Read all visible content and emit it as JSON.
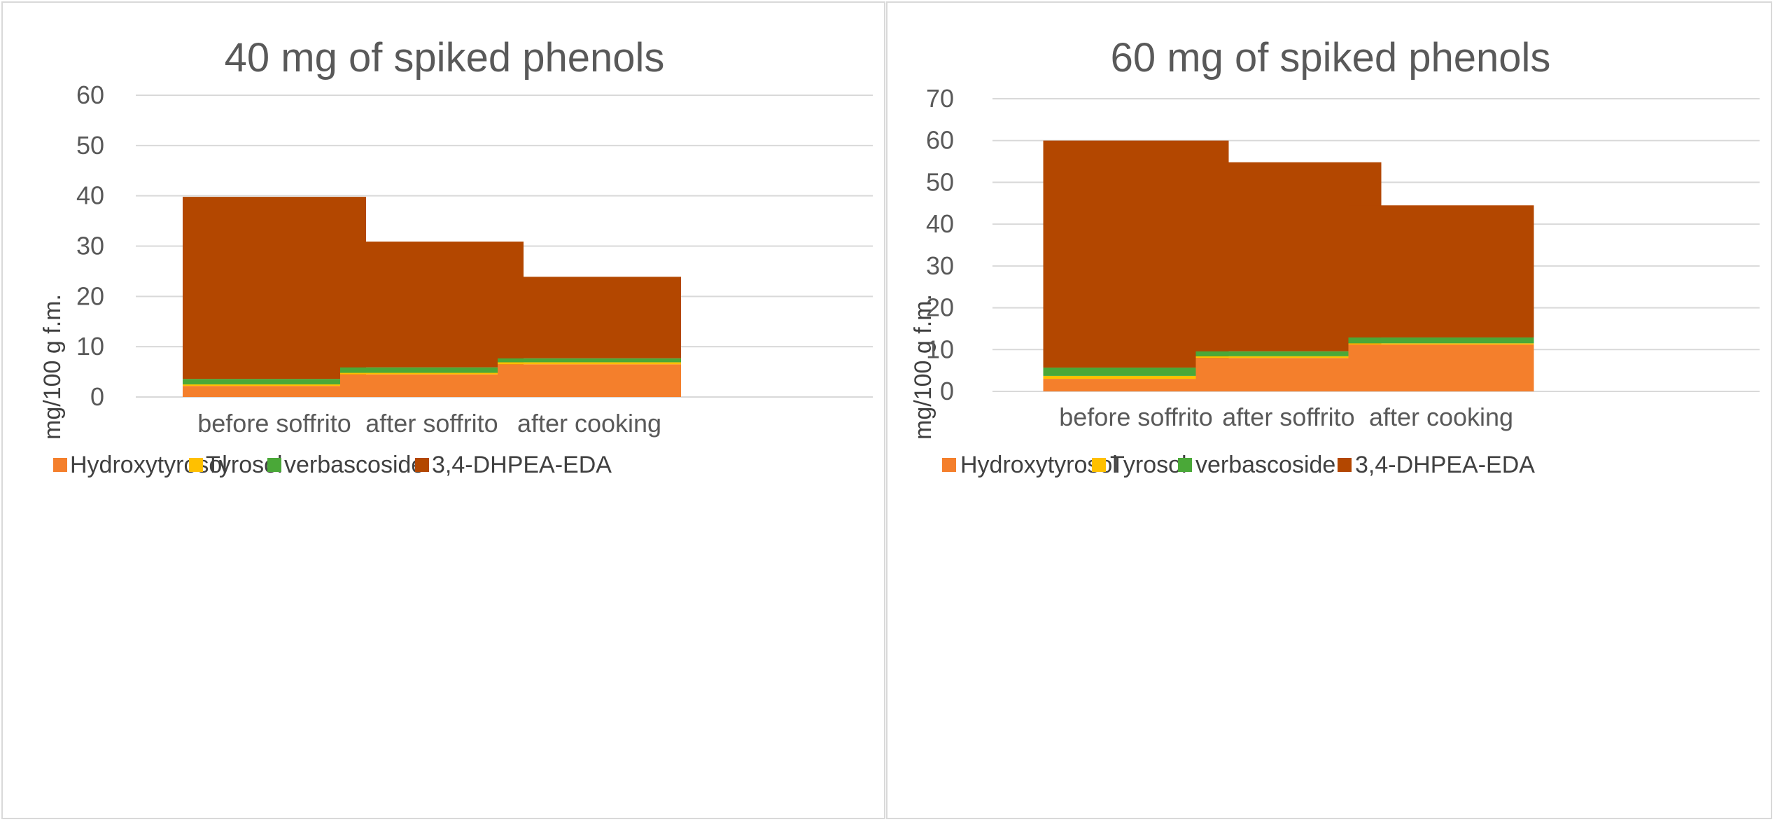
{
  "colors": {
    "Hydroxytyrosol": "#f47f2c",
    "Tyrosol": "#ffc000",
    "verbascoside": "#4aa838",
    "3,4-DHPEA-EDA": "#b34700"
  },
  "chart_data": [
    {
      "type": "bar",
      "stacked": true,
      "title": "40 mg of spiked phenols",
      "xlabel": "",
      "ylabel": "mg/100 g f.m.",
      "ylim": [
        0,
        60
      ],
      "yticks": [
        0,
        10,
        20,
        30,
        40,
        50,
        60
      ],
      "categories": [
        "before soffrito",
        "after soffrito",
        "after cooking"
      ],
      "series": [
        {
          "name": "Hydroxytyrosol",
          "values": [
            2.2,
            4.5,
            6.5
          ]
        },
        {
          "name": "Tyrosol",
          "values": [
            0.3,
            0.3,
            0.4
          ]
        },
        {
          "name": "verbascoside",
          "values": [
            1.1,
            1.1,
            0.8
          ]
        },
        {
          "name": "3,4-DHPEA-EDA",
          "values": [
            36.2,
            25.0,
            16.2
          ]
        }
      ],
      "legend": [
        "Hydroxytyrosol",
        "Tyrosol",
        "verbascoside",
        "3,4-DHPEA-EDA"
      ],
      "legend_position": "bottom",
      "grid": true
    },
    {
      "type": "bar",
      "stacked": true,
      "title": "60 mg of spiked phenols",
      "xlabel": "",
      "ylabel": "mg/100 g f.m.",
      "ylim": [
        0,
        70
      ],
      "yticks": [
        0,
        10,
        20,
        30,
        40,
        50,
        60,
        70
      ],
      "categories": [
        "before soffrito",
        "after soffrito",
        "after cooking"
      ],
      "series": [
        {
          "name": "Hydroxytyrosol",
          "values": [
            3.0,
            8.0,
            11.2
          ]
        },
        {
          "name": "Tyrosol",
          "values": [
            0.7,
            0.4,
            0.3
          ]
        },
        {
          "name": "verbascoside",
          "values": [
            2.0,
            1.2,
            1.4
          ]
        },
        {
          "name": "3,4-DHPEA-EDA",
          "values": [
            54.3,
            45.2,
            31.6
          ]
        }
      ],
      "legend": [
        "Hydroxytyrosol",
        "Tyrosol",
        "verbascoside",
        "3,4-DHPEA-EDA"
      ],
      "legend_position": "bottom",
      "grid": true
    }
  ]
}
